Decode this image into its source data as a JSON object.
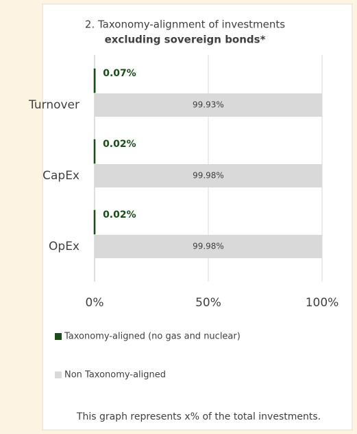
{
  "chart_data": {
    "type": "hbar",
    "title": "2. Taxonomy-alignment of investments",
    "subtitle": "excluding sovereign bonds*",
    "categories": [
      "Turnover",
      "CapEx",
      "OpEx"
    ],
    "series": [
      {
        "name": "Taxonomy-aligned (no gas and nuclear)",
        "color": "#1b4d1b",
        "values": [
          0.07,
          0.02,
          0.02
        ],
        "value_labels": [
          "0.07%",
          "0.02%",
          "0.02%"
        ]
      },
      {
        "name": "Non Taxonomy-aligned",
        "color": "#d9d9d9",
        "values": [
          99.93,
          99.98,
          99.98
        ],
        "value_labels": [
          "99.93%",
          "99.98%",
          "99.98%"
        ]
      }
    ],
    "xlim": [
      0,
      100
    ],
    "xticks": [
      {
        "value": 0,
        "label": "0%"
      },
      {
        "value": 50,
        "label": "50%"
      },
      {
        "value": 100,
        "label": "100%"
      }
    ],
    "grid": true,
    "note": "This graph represents x% of the total investments."
  }
}
